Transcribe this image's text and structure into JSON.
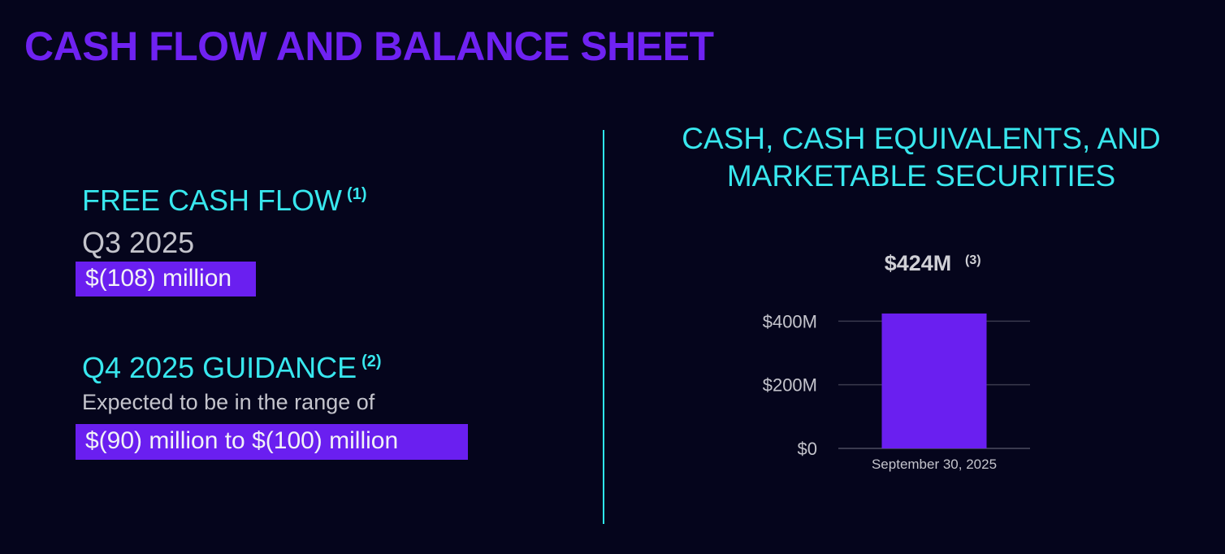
{
  "page": {
    "title": "CASH FLOW AND BALANCE SHEET"
  },
  "left": {
    "fcf": {
      "heading": "FREE CASH FLOW",
      "footnote": "(1)",
      "period": "Q3 2025",
      "value": "$(108) million"
    },
    "guidance": {
      "heading": "Q4 2025 GUIDANCE",
      "footnote": "(2)",
      "text": "Expected to be in the range of",
      "value": "$(90) million to $(100) million"
    }
  },
  "chart_data": {
    "type": "bar",
    "title_lines": [
      "CASH, CASH EQUIVALENTS, AND",
      "MARKETABLE SECURITIES"
    ],
    "categories": [
      "September 30, 2025"
    ],
    "values": [
      424
    ],
    "data_labels": [
      "$424M"
    ],
    "data_label_footnote": "(3)",
    "ylim": [
      0,
      480
    ],
    "yticks": [
      0,
      200,
      400
    ],
    "ytick_labels": [
      "$0",
      "$200M",
      "$400M"
    ],
    "xlabel": "",
    "ylabel": "",
    "grid": true,
    "colors": {
      "bar": "#6a1ff0",
      "grid": "#3a3a4e",
      "tick_text": "#c4c4cc",
      "data_label": "#d0d0d6"
    }
  }
}
